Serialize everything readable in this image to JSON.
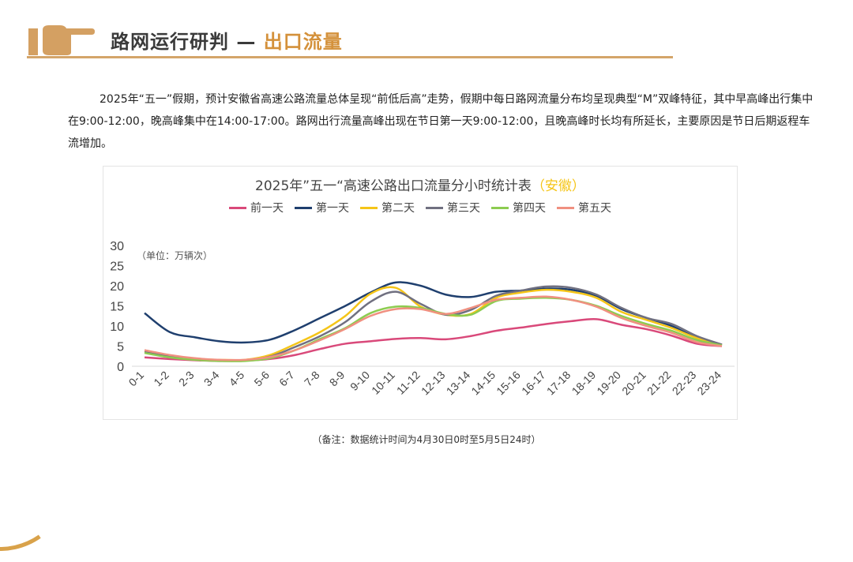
{
  "header": {
    "title_main": "路网运行研判 —",
    "title_accent": "出口流量",
    "icon": "pointing-hand-icon"
  },
  "paragraph": "2025年“五一”假期，预计安徽省高速公路流量总体呈现“前低后高”走势，假期中每日路网流量分布均呈现典型“M”双峰特征，其中早高峰出行集中在9:00-12:00，晚高峰集中在14:00-17:00。路网出行流量高峰出现在节日第一天9:00-12:00，且晚高峰时长均有所延长，主要原因是节日后期返程车流增加。",
  "note": "（备注：数据统计时间为4月30日0时至5月5日24时）",
  "colors": {
    "accent": "#d4913b"
  },
  "chart_data": {
    "type": "line",
    "title": "2025年”五一“高速公路出口流量分小时统计表",
    "title_accent": "（安徽）",
    "unit_label": "（单位：万辆次）",
    "legend_position": "top",
    "grid": false,
    "ylim": [
      0,
      30
    ],
    "yticks": [
      0,
      5,
      10,
      15,
      20,
      25,
      30
    ],
    "categories": [
      "0-1",
      "1-2",
      "2-3",
      "3-4",
      "4-5",
      "5-6",
      "6-7",
      "7-8",
      "8-9",
      "9-10",
      "10-11",
      "11-12",
      "12-13",
      "13-14",
      "14-15",
      "15-16",
      "16-17",
      "17-18",
      "18-19",
      "19-20",
      "20-21",
      "21-22",
      "22-23",
      "23-24"
    ],
    "series": [
      {
        "name": "前一天",
        "color": "#d9497a",
        "values": [
          2.2,
          1.8,
          1.5,
          1.3,
          1.4,
          1.8,
          2.8,
          4.3,
          5.6,
          6.2,
          6.8,
          7.0,
          6.7,
          7.5,
          8.8,
          9.6,
          10.5,
          11.2,
          11.7,
          10.3,
          9.2,
          7.6,
          5.6,
          5.0
        ]
      },
      {
        "name": "第一天",
        "color": "#1f3f6e",
        "values": [
          13.2,
          8.5,
          7.2,
          6.2,
          5.9,
          6.6,
          9.0,
          12.0,
          15.0,
          18.3,
          20.8,
          20.0,
          17.8,
          17.2,
          18.5,
          18.8,
          19.3,
          19.0,
          17.5,
          14.2,
          12.0,
          10.0,
          7.0,
          5.3
        ]
      },
      {
        "name": "第二天",
        "color": "#f5c518",
        "values": [
          3.8,
          2.6,
          1.9,
          1.6,
          1.6,
          2.8,
          5.5,
          8.5,
          12.5,
          18.0,
          19.5,
          14.8,
          12.8,
          13.0,
          17.0,
          18.3,
          19.0,
          18.5,
          17.0,
          13.5,
          11.5,
          9.5,
          7.0,
          5.3
        ]
      },
      {
        "name": "第三天",
        "color": "#707080",
        "values": [
          3.5,
          2.4,
          1.8,
          1.5,
          1.5,
          2.4,
          4.8,
          7.5,
          11.0,
          16.0,
          18.5,
          15.5,
          12.8,
          14.0,
          17.5,
          18.8,
          19.8,
          19.5,
          17.8,
          14.5,
          12.0,
          10.5,
          7.5,
          5.4
        ]
      },
      {
        "name": "第四天",
        "color": "#8ccc50",
        "values": [
          3.3,
          2.2,
          1.6,
          1.3,
          1.3,
          2.0,
          4.0,
          6.8,
          9.5,
          13.2,
          14.8,
          14.5,
          13.0,
          12.8,
          16.2,
          16.8,
          17.0,
          16.5,
          15.0,
          12.5,
          10.5,
          8.8,
          6.5,
          5.2
        ]
      },
      {
        "name": "第五天",
        "color": "#f09080",
        "values": [
          4.0,
          2.8,
          2.0,
          1.6,
          1.6,
          2.3,
          4.0,
          6.5,
          9.3,
          12.5,
          14.2,
          14.2,
          13.0,
          14.5,
          16.5,
          17.0,
          17.3,
          16.5,
          14.8,
          12.0,
          10.0,
          8.3,
          6.0,
          5.0
        ]
      }
    ]
  }
}
